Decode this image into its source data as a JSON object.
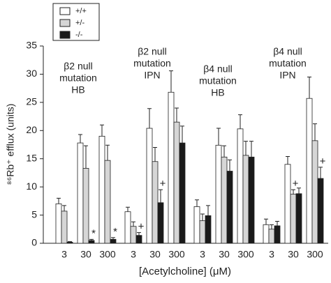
{
  "chart_data": {
    "type": "bar",
    "ylabel": "⁸⁶Rb⁺ efflux (units)",
    "xlabel": "[Acetylcholine] (μM)",
    "ylim": [
      0,
      35
    ],
    "yticks": [
      0,
      5,
      10,
      15,
      20,
      25,
      30,
      35
    ],
    "series": [
      {
        "name": "+/+",
        "color": "#ffffff"
      },
      {
        "name": "+/-",
        "color": "#d6d6d6"
      },
      {
        "name": "-/-",
        "color": "#1a1a1a"
      }
    ],
    "panels": [
      {
        "title": [
          "β2 null",
          "mutation",
          "HB"
        ],
        "categories": [
          "3",
          "30",
          "300"
        ],
        "values": [
          [
            7.0,
            17.8,
            19.0
          ],
          [
            5.7,
            13.3,
            14.7
          ],
          [
            0.2,
            0.5,
            0.7
          ]
        ],
        "errors": [
          [
            1.0,
            1.5,
            2.0
          ],
          [
            1.0,
            4.0,
            2.7
          ],
          [
            0.1,
            0.2,
            0.3
          ]
        ],
        "annotations": [
          [
            null,
            null,
            null
          ],
          [
            null,
            null,
            null
          ],
          [
            null,
            "*",
            "*"
          ]
        ]
      },
      {
        "title": [
          "β2 null",
          "mutation",
          "IPN"
        ],
        "categories": [
          "3",
          "30",
          "300"
        ],
        "values": [
          [
            5.6,
            20.4,
            26.8
          ],
          [
            3.0,
            14.5,
            21.5
          ],
          [
            1.4,
            7.2,
            17.8
          ]
        ],
        "errors": [
          [
            0.8,
            3.5,
            3.8
          ],
          [
            0.8,
            2.5,
            2.5
          ],
          [
            0.5,
            2.3,
            3.0
          ]
        ],
        "annotations": [
          [
            null,
            null,
            null
          ],
          [
            null,
            null,
            null
          ],
          [
            "+",
            "+",
            null
          ]
        ]
      },
      {
        "title": [
          "β4 null",
          "mutation",
          "HB"
        ],
        "categories": [
          "3",
          "30",
          "300"
        ],
        "values": [
          [
            6.5,
            17.4,
            20.3
          ],
          [
            4.0,
            15.3,
            15.6
          ],
          [
            4.9,
            12.8,
            15.3
          ]
        ],
        "errors": [
          [
            1.2,
            3.0,
            2.5
          ],
          [
            1.2,
            2.0,
            2.5
          ],
          [
            1.8,
            2.0,
            2.8
          ]
        ],
        "annotations": [
          [
            null,
            null,
            null
          ],
          [
            null,
            null,
            null
          ],
          [
            null,
            null,
            null
          ]
        ]
      },
      {
        "title": [
          "β4 null",
          "mutation",
          "IPN"
        ],
        "categories": [
          "3",
          "30",
          "300"
        ],
        "values": [
          [
            3.3,
            14.0,
            25.7
          ],
          [
            2.5,
            8.7,
            18.2
          ],
          [
            3.1,
            8.8,
            11.5
          ]
        ],
        "errors": [
          [
            1.0,
            1.4,
            3.8
          ],
          [
            0.8,
            0.8,
            3.0
          ],
          [
            0.8,
            1.0,
            2.0
          ]
        ],
        "annotations": [
          [
            null,
            null,
            null
          ],
          [
            null,
            "+",
            null
          ],
          [
            null,
            null,
            "+"
          ]
        ]
      }
    ]
  }
}
